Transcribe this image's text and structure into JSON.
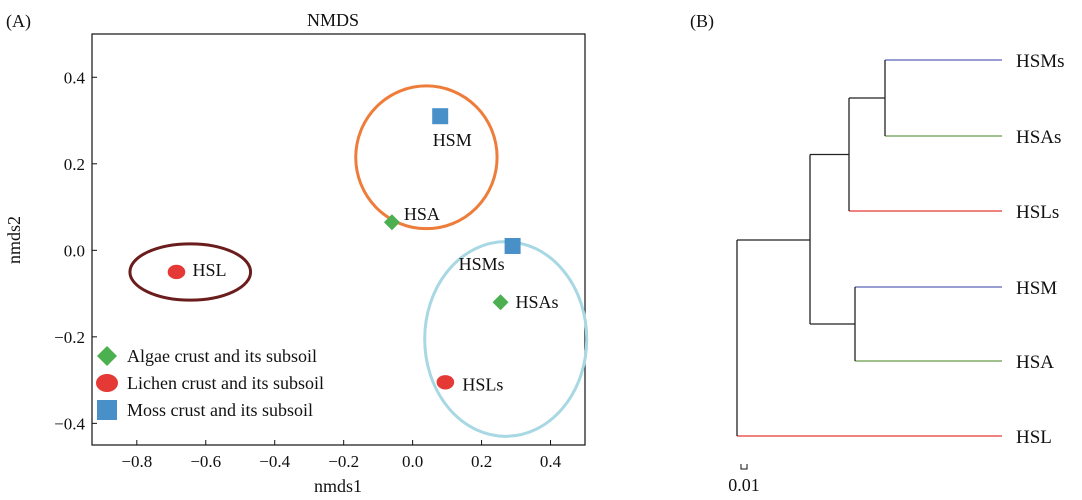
{
  "chart_data": [
    {
      "panel_label": "(A)",
      "type": "scatter",
      "title": "NMDS",
      "xlabel": "nmds1",
      "ylabel": "nmds2",
      "xlim": [
        -0.93,
        0.5
      ],
      "ylim": [
        -0.45,
        0.5
      ],
      "xticks": [
        -0.8,
        -0.6,
        -0.4,
        -0.2,
        0.0,
        0.2,
        0.4
      ],
      "xtick_labels": [
        "−0.8",
        "−0.6",
        "−0.4",
        "−0.2",
        "0.0",
        "0.2",
        "0.4"
      ],
      "yticks": [
        0.4,
        0.2,
        0.0,
        -0.2,
        -0.4
      ],
      "ytick_labels": [
        "0.4",
        "0.2",
        "0.0",
        "−0.2",
        "−0.4"
      ],
      "grid": false,
      "legend_position": "bottom-left",
      "series": [
        {
          "name": "Algae crust and its subsoil",
          "marker": "diamond",
          "color": "#4caf50",
          "points": [
            {
              "label": "HSA",
              "x": -0.06,
              "y": 0.065
            },
            {
              "label": "HSAs",
              "x": 0.255,
              "y": -0.12
            }
          ]
        },
        {
          "name": "Lichen crust and its subsoil",
          "marker": "circle",
          "color": "#e53935",
          "points": [
            {
              "label": "HSL",
              "x": -0.685,
              "y": -0.05
            },
            {
              "label": "HSLs",
              "x": 0.095,
              "y": -0.305
            }
          ]
        },
        {
          "name": "Moss crust and its subsoil",
          "marker": "square",
          "color": "#4a90c8",
          "points": [
            {
              "label": "HSM",
              "x": 0.08,
              "y": 0.31
            },
            {
              "label": "HSMs",
              "x": 0.29,
              "y": 0.01
            }
          ]
        }
      ],
      "ellipses": [
        {
          "color": "#6b1d1d",
          "cx": -0.645,
          "cy": -0.05,
          "rx": 0.175,
          "ry": 0.065
        },
        {
          "color": "#ee7d3b",
          "cx": 0.04,
          "cy": 0.215,
          "rx": 0.205,
          "ry": 0.165
        },
        {
          "color": "#a7d8e3",
          "cx": 0.27,
          "cy": -0.205,
          "rx": 0.235,
          "ry": 0.225
        }
      ]
    },
    {
      "panel_label": "(B)",
      "type": "dendrogram",
      "scale_label": "0.01",
      "leaves": [
        "HSMs",
        "HSAs",
        "HSLs",
        "HSM",
        "HSA",
        "HSL"
      ],
      "leaf_colors": [
        "#5b63b8",
        "#6b9a4a",
        "#e53935",
        "#5b63b8",
        "#6b9a4a",
        "#e53935"
      ]
    }
  ]
}
